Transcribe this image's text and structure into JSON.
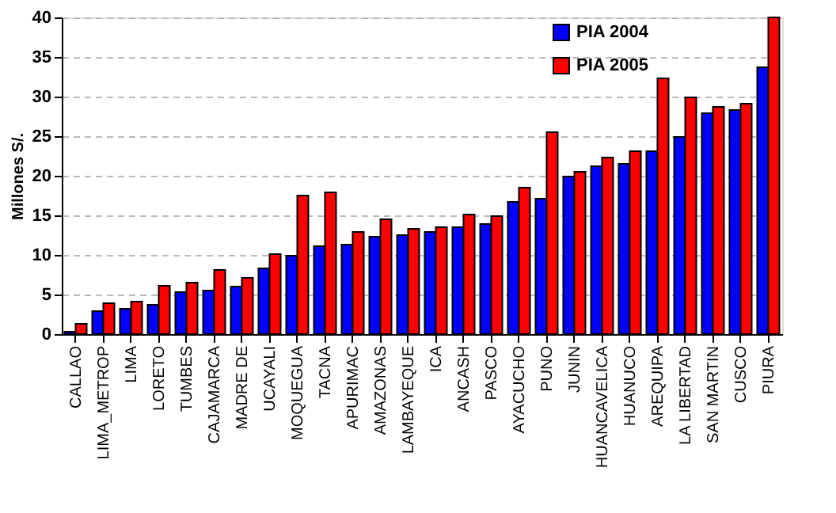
{
  "chart_data": {
    "type": "bar",
    "ylabel": "Millones S/.",
    "categories": [
      "CALLAO",
      "LIMA_METROP",
      "LIMA",
      "LORETO",
      "TUMBES",
      "CAJAMARCA",
      "MADRE DE",
      "UCAYALI",
      "MOQUEGUA",
      "TACNA",
      "APURIMAC",
      "AMAZONAS",
      "LAMBAYEQUE",
      "ICA",
      "ANCASH",
      "PASCO",
      "AYACUCHO",
      "PUNO",
      "JUNIN",
      "HUANCAVELICA",
      "HUANUCO",
      "AREQUIPA",
      "LA LIBERTAD",
      "SAN MARTIN",
      "CUSCO",
      "PIURA"
    ],
    "series": [
      {
        "name": "PIA 2004",
        "color": "#0000ff",
        "values": [
          0.3,
          2.9,
          3.2,
          3.7,
          5.3,
          5.5,
          6.0,
          8.3,
          9.9,
          11.1,
          11.3,
          12.3,
          12.5,
          12.9,
          13.5,
          13.9,
          16.7,
          17.1,
          19.9,
          21.2,
          21.5,
          23.1,
          24.9,
          27.9,
          28.3,
          33.7
        ]
      },
      {
        "name": "PIA 2005",
        "color": "#ff0000",
        "values": [
          1.3,
          3.9,
          4.1,
          6.1,
          6.5,
          8.1,
          7.1,
          10.1,
          17.5,
          17.9,
          12.9,
          14.5,
          13.3,
          13.5,
          15.1,
          14.9,
          18.5,
          25.5,
          20.5,
          22.3,
          23.1,
          32.3,
          29.9,
          28.7,
          29.1,
          40
        ]
      }
    ],
    "ylim": [
      0,
      40
    ],
    "yticks": [
      0,
      5,
      10,
      15,
      20,
      25,
      30,
      35,
      40
    ],
    "grid": "y",
    "legend": "top right"
  }
}
